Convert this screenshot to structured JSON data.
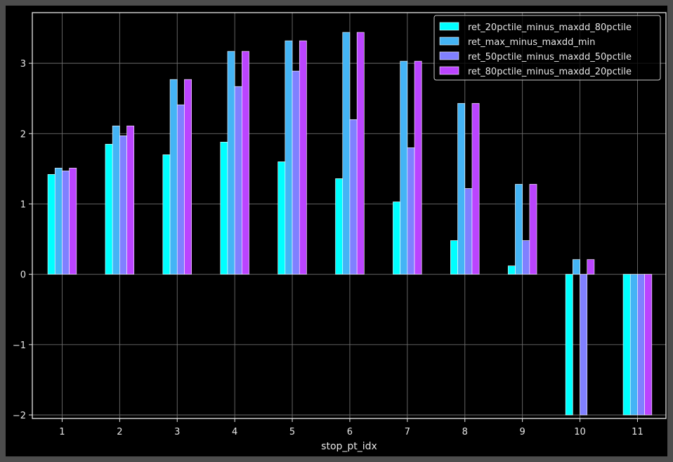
{
  "chart_data": {
    "type": "bar",
    "title": "",
    "xlabel": "stop_pt_idx",
    "ylabel": "",
    "categories": [
      "1",
      "2",
      "3",
      "4",
      "5",
      "6",
      "7",
      "8",
      "9",
      "10",
      "11"
    ],
    "ylim": [
      -2.05,
      3.72
    ],
    "yticks": [
      -2,
      -1,
      0,
      1,
      2,
      3
    ],
    "ytick_labels": [
      "−2",
      "−1",
      "0",
      "1",
      "2",
      "3"
    ],
    "grid": true,
    "legend_position": "top-right",
    "series": [
      {
        "name": "ret_20pctile_minus_maxdd_80pctile",
        "color": "#00ffff",
        "values": [
          1.42,
          1.85,
          1.7,
          1.88,
          1.6,
          1.36,
          1.03,
          0.48,
          0.12,
          -2.0,
          -2.0
        ]
      },
      {
        "name": "ret_max_minus_maxdd_min",
        "color": "#44b4f5",
        "values": [
          1.51,
          2.11,
          2.77,
          3.17,
          3.32,
          3.44,
          3.03,
          2.43,
          1.28,
          0.21,
          -2.0
        ]
      },
      {
        "name": "ret_50pctile_minus_maxdd_50pctile",
        "color": "#8080ff",
        "values": [
          1.47,
          1.97,
          2.41,
          2.67,
          2.89,
          2.2,
          1.8,
          1.22,
          0.48,
          -2.0,
          -2.0
        ]
      },
      {
        "name": "ret_80pctile_minus_maxdd_20pctile",
        "color": "#bb44ff",
        "values": [
          1.51,
          2.11,
          2.77,
          3.17,
          3.32,
          3.44,
          3.03,
          2.43,
          1.28,
          0.21,
          -2.0
        ]
      }
    ]
  }
}
